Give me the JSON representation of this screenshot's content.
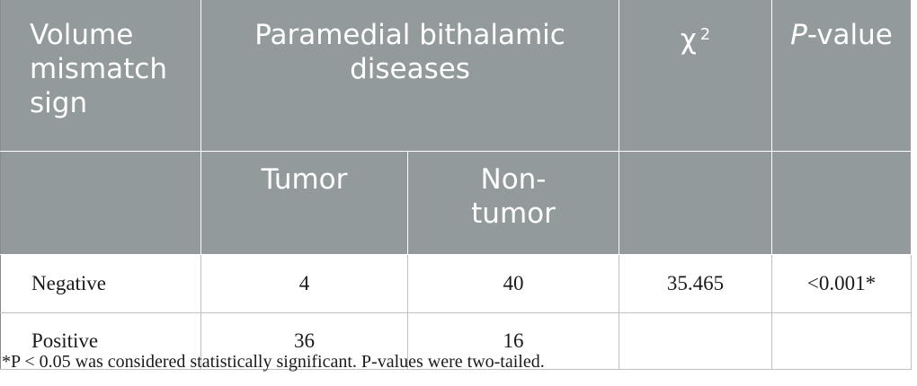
{
  "table": {
    "headers": {
      "row1": {
        "col1": "Volume mismatch sign",
        "col2": "Paramedial bithalamic diseases",
        "col3_chi": "χ",
        "col3_sup": "2",
        "col4_p": "P",
        "col4_rest": "-value"
      },
      "row2": {
        "tumor": "Tumor",
        "nontumor": "Non-tumor"
      }
    },
    "rows": [
      {
        "label": "Negative",
        "tumor": "4",
        "nontumor": "40",
        "chi2": "35.465",
        "p": "<0.001*"
      },
      {
        "label": "Positive",
        "tumor": "36",
        "nontumor": "16",
        "chi2": "",
        "p": ""
      }
    ]
  },
  "footnote": "*P < 0.05 was considered statistically significant. P-values were two-tailed."
}
